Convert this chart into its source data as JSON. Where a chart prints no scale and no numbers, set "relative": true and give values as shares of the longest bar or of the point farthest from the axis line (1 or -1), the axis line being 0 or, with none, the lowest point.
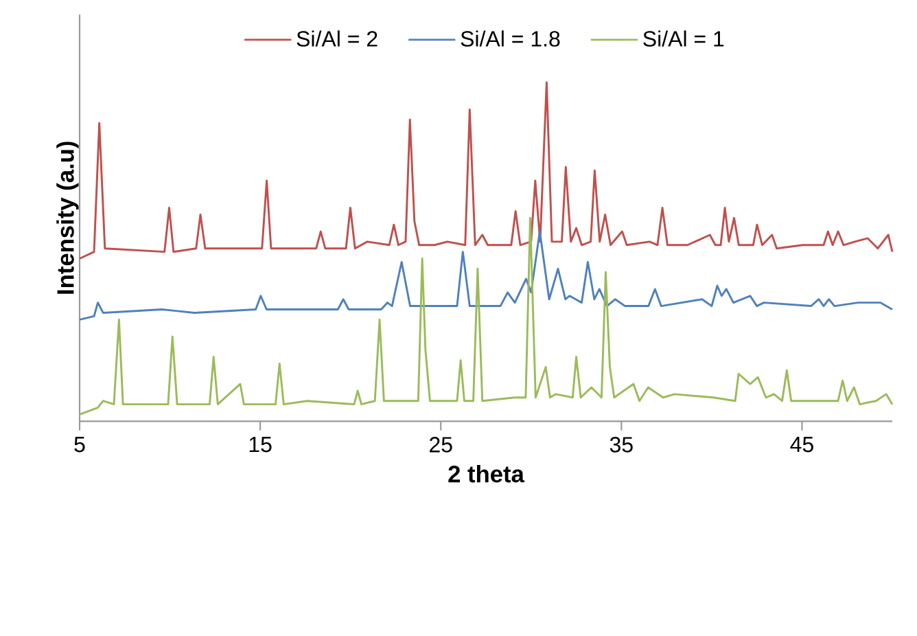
{
  "chart_data": {
    "type": "line",
    "relative": true,
    "xlabel": "2 theta",
    "ylabel": "Intensity (a.u)",
    "xlim": [
      5,
      50
    ],
    "xticks": [
      5,
      15,
      25,
      35,
      45
    ],
    "legend": "top",
    "marker": "none",
    "line_style": "solid",
    "series": [
      {
        "name": "Si/Al = 2",
        "color": "#c0504d",
        "x": [
          5.0,
          5.8,
          6.09,
          6.4,
          9.7,
          9.96,
          10.2,
          11.45,
          11.69,
          11.95,
          15.1,
          15.36,
          15.6,
          18.1,
          18.35,
          18.6,
          19.75,
          19.99,
          20.25,
          20.93,
          22.15,
          22.4,
          22.65,
          23.05,
          23.29,
          23.54,
          23.8,
          24.66,
          25.36,
          26.35,
          26.6,
          26.9,
          27.3,
          27.6,
          28.9,
          29.14,
          29.4,
          30.0,
          30.23,
          30.5,
          30.86,
          31.15,
          31.7,
          31.92,
          32.2,
          32.5,
          32.8,
          33.3,
          33.52,
          33.8,
          34.1,
          34.4,
          35.04,
          35.3,
          36.56,
          37.0,
          37.27,
          37.55,
          38.66,
          39.9,
          40.2,
          40.5,
          40.73,
          40.95,
          41.24,
          41.5,
          42.3,
          42.51,
          42.8,
          43.34,
          43.6,
          45.05,
          46.2,
          46.44,
          46.7,
          47.0,
          47.3,
          47.93,
          48.64,
          49.2,
          49.78,
          50.0
        ],
        "values": [
          0.48,
          0.5,
          0.88,
          0.51,
          0.5,
          0.63,
          0.5,
          0.51,
          0.61,
          0.51,
          0.51,
          0.71,
          0.51,
          0.51,
          0.56,
          0.51,
          0.51,
          0.63,
          0.51,
          0.53,
          0.52,
          0.58,
          0.52,
          0.53,
          0.89,
          0.59,
          0.52,
          0.52,
          0.53,
          0.52,
          0.92,
          0.52,
          0.55,
          0.52,
          0.52,
          0.62,
          0.52,
          0.53,
          0.71,
          0.53,
          1.0,
          0.53,
          0.53,
          0.75,
          0.53,
          0.57,
          0.52,
          0.53,
          0.74,
          0.53,
          0.61,
          0.52,
          0.56,
          0.52,
          0.53,
          0.52,
          0.63,
          0.52,
          0.52,
          0.55,
          0.52,
          0.52,
          0.63,
          0.53,
          0.6,
          0.52,
          0.52,
          0.58,
          0.52,
          0.55,
          0.51,
          0.52,
          0.52,
          0.56,
          0.52,
          0.56,
          0.52,
          0.53,
          0.54,
          0.51,
          0.55,
          0.5
        ]
      },
      {
        "name": "Si/Al = 1.8",
        "color": "#4f81bd",
        "x": [
          5.0,
          5.8,
          6.01,
          6.3,
          9.56,
          11.36,
          14.75,
          15.03,
          15.35,
          18.0,
          19.3,
          19.6,
          19.9,
          21.7,
          22.04,
          22.3,
          22.83,
          23.3,
          25.9,
          26.22,
          26.6,
          28.3,
          28.7,
          29.1,
          29.72,
          30.0,
          30.48,
          31.0,
          31.49,
          31.9,
          32.13,
          32.8,
          33.14,
          33.5,
          33.78,
          34.2,
          34.66,
          35.2,
          36.5,
          36.86,
          37.2,
          39.47,
          40.0,
          40.31,
          40.55,
          40.81,
          41.2,
          42.13,
          42.5,
          42.89,
          45.5,
          45.93,
          46.2,
          46.49,
          46.8,
          48.1,
          49.35,
          50.0
        ],
        "values": [
          0.3,
          0.31,
          0.35,
          0.32,
          0.33,
          0.32,
          0.33,
          0.37,
          0.33,
          0.33,
          0.33,
          0.36,
          0.33,
          0.33,
          0.35,
          0.34,
          0.47,
          0.34,
          0.34,
          0.5,
          0.34,
          0.34,
          0.38,
          0.35,
          0.42,
          0.38,
          0.56,
          0.36,
          0.45,
          0.36,
          0.37,
          0.35,
          0.47,
          0.36,
          0.39,
          0.34,
          0.36,
          0.34,
          0.34,
          0.39,
          0.34,
          0.36,
          0.34,
          0.4,
          0.37,
          0.39,
          0.35,
          0.37,
          0.34,
          0.35,
          0.34,
          0.36,
          0.34,
          0.36,
          0.34,
          0.35,
          0.35,
          0.33
        ]
      },
      {
        "name": "Si/Al = 1",
        "color": "#9bbb59",
        "x": [
          5.0,
          6.0,
          6.3,
          6.9,
          7.18,
          7.4,
          9.9,
          10.14,
          10.4,
          12.2,
          12.42,
          12.65,
          13.89,
          14.1,
          15.85,
          16.07,
          16.3,
          17.6,
          20.2,
          20.4,
          20.6,
          21.35,
          21.61,
          21.85,
          23.75,
          23.97,
          24.15,
          24.4,
          25.9,
          26.1,
          26.3,
          26.8,
          27.04,
          27.3,
          29.1,
          29.7,
          29.95,
          30.25,
          30.81,
          31.05,
          31.37,
          32.3,
          32.5,
          32.75,
          33.34,
          33.9,
          34.13,
          34.36,
          34.6,
          35.67,
          36.0,
          36.48,
          37.31,
          37.95,
          40.1,
          41.3,
          41.49,
          42.13,
          42.56,
          43.0,
          43.45,
          43.9,
          44.16,
          44.4,
          47.0,
          47.25,
          47.5,
          47.88,
          48.2,
          49.1,
          49.66,
          50.0
        ],
        "values": [
          0.02,
          0.04,
          0.06,
          0.05,
          0.3,
          0.05,
          0.05,
          0.25,
          0.05,
          0.05,
          0.19,
          0.05,
          0.11,
          0.05,
          0.05,
          0.17,
          0.05,
          0.06,
          0.05,
          0.09,
          0.05,
          0.06,
          0.3,
          0.06,
          0.06,
          0.48,
          0.21,
          0.06,
          0.06,
          0.18,
          0.06,
          0.06,
          0.45,
          0.06,
          0.07,
          0.07,
          0.6,
          0.07,
          0.16,
          0.07,
          0.08,
          0.07,
          0.19,
          0.07,
          0.1,
          0.07,
          0.44,
          0.16,
          0.07,
          0.11,
          0.06,
          0.1,
          0.07,
          0.08,
          0.07,
          0.06,
          0.14,
          0.11,
          0.13,
          0.07,
          0.08,
          0.06,
          0.15,
          0.06,
          0.06,
          0.12,
          0.06,
          0.1,
          0.05,
          0.06,
          0.08,
          0.05
        ]
      }
    ]
  }
}
